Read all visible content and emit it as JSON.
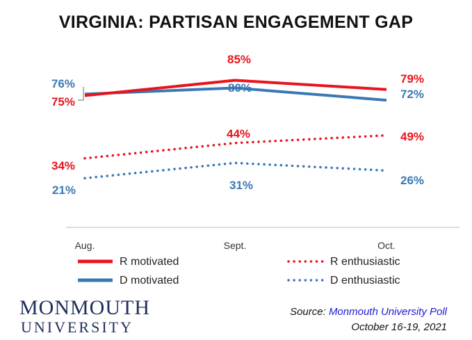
{
  "chart_data": {
    "type": "line",
    "title": "VIRGINIA: PARTISAN ENGAGEMENT GAP",
    "categories": [
      "Aug.",
      "Sept.",
      "Oct."
    ],
    "ylim": [
      0,
      100
    ],
    "grid": false,
    "legend_position": "bottom",
    "series": [
      {
        "name": "R motivated",
        "values": [
          75,
          85,
          79
        ],
        "labels": [
          "75%",
          "85%",
          "79%"
        ],
        "color": "#e8141c",
        "style": "solid"
      },
      {
        "name": "D motivated",
        "values": [
          76,
          80,
          72
        ],
        "labels": [
          "76%",
          "80%",
          "72%"
        ],
        "color": "#3a78b5",
        "style": "solid"
      },
      {
        "name": "R enthusiastic",
        "values": [
          34,
          44,
          49
        ],
        "labels": [
          "34%",
          "44%",
          "49%"
        ],
        "color": "#e8141c",
        "style": "dotted"
      },
      {
        "name": "D enthusiastic",
        "values": [
          21,
          31,
          26
        ],
        "labels": [
          "21%",
          "31%",
          "26%"
        ],
        "color": "#3a78b5",
        "style": "dotted"
      }
    ]
  },
  "footer": {
    "logo_line1": "MONMOUTH",
    "logo_line2": "UNIVERSITY",
    "source_prefix": "Source:",
    "source_name": "Monmouth University Poll",
    "source_dates": "October 16-19, 2021"
  }
}
